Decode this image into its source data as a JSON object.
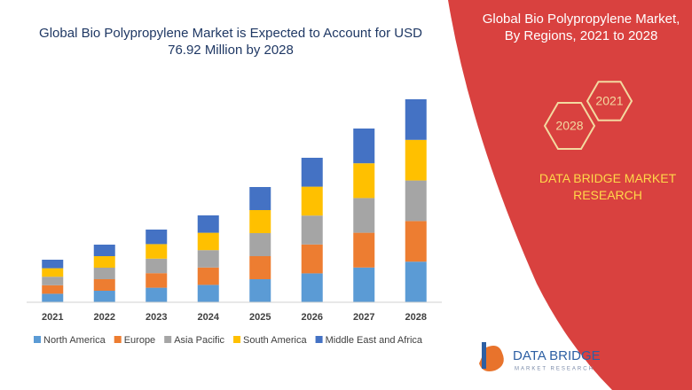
{
  "chart_data": {
    "type": "stacked_bar",
    "title": "Global Bio Polypropylene Market is Expected to Account for USD 76.92 Million by 2028",
    "categories": [
      "2021",
      "2022",
      "2023",
      "2024",
      "2025",
      "2026",
      "2027",
      "2028"
    ],
    "series": [
      {
        "name": "North America",
        "color": "#5b9bd5",
        "values": [
          9.6,
          13,
          16.4,
          19.6,
          26,
          32.6,
          39.2,
          45.8
        ]
      },
      {
        "name": "Europe",
        "color": "#ed7d31",
        "values": [
          9.6,
          13,
          16.4,
          19.6,
          26,
          32.6,
          39.2,
          45.8
        ]
      },
      {
        "name": "Asia Pacific",
        "color": "#a5a5a5",
        "values": [
          9.6,
          13,
          16.4,
          19.6,
          26,
          32.6,
          39.2,
          45.8
        ]
      },
      {
        "name": "South America",
        "color": "#ffc000",
        "values": [
          9.6,
          13,
          16.4,
          19.6,
          26,
          32.6,
          39.2,
          45.8
        ]
      },
      {
        "name": "Middle East and Africa",
        "color": "#4472c4",
        "values": [
          9.6,
          13,
          16.4,
          19.6,
          26,
          32.6,
          39.2,
          45.8
        ]
      }
    ],
    "legend": "bottom"
  },
  "panel": {
    "title": "Global Bio Polypropylene Market, By Regions, 2021 to 2028",
    "badges": [
      "2021",
      "2028"
    ],
    "brand": "DATA BRIDGE MARKET RESEARCH"
  },
  "logo": {
    "name": "DATA BRIDGE",
    "tagline": "MARKET RESEARCH"
  }
}
